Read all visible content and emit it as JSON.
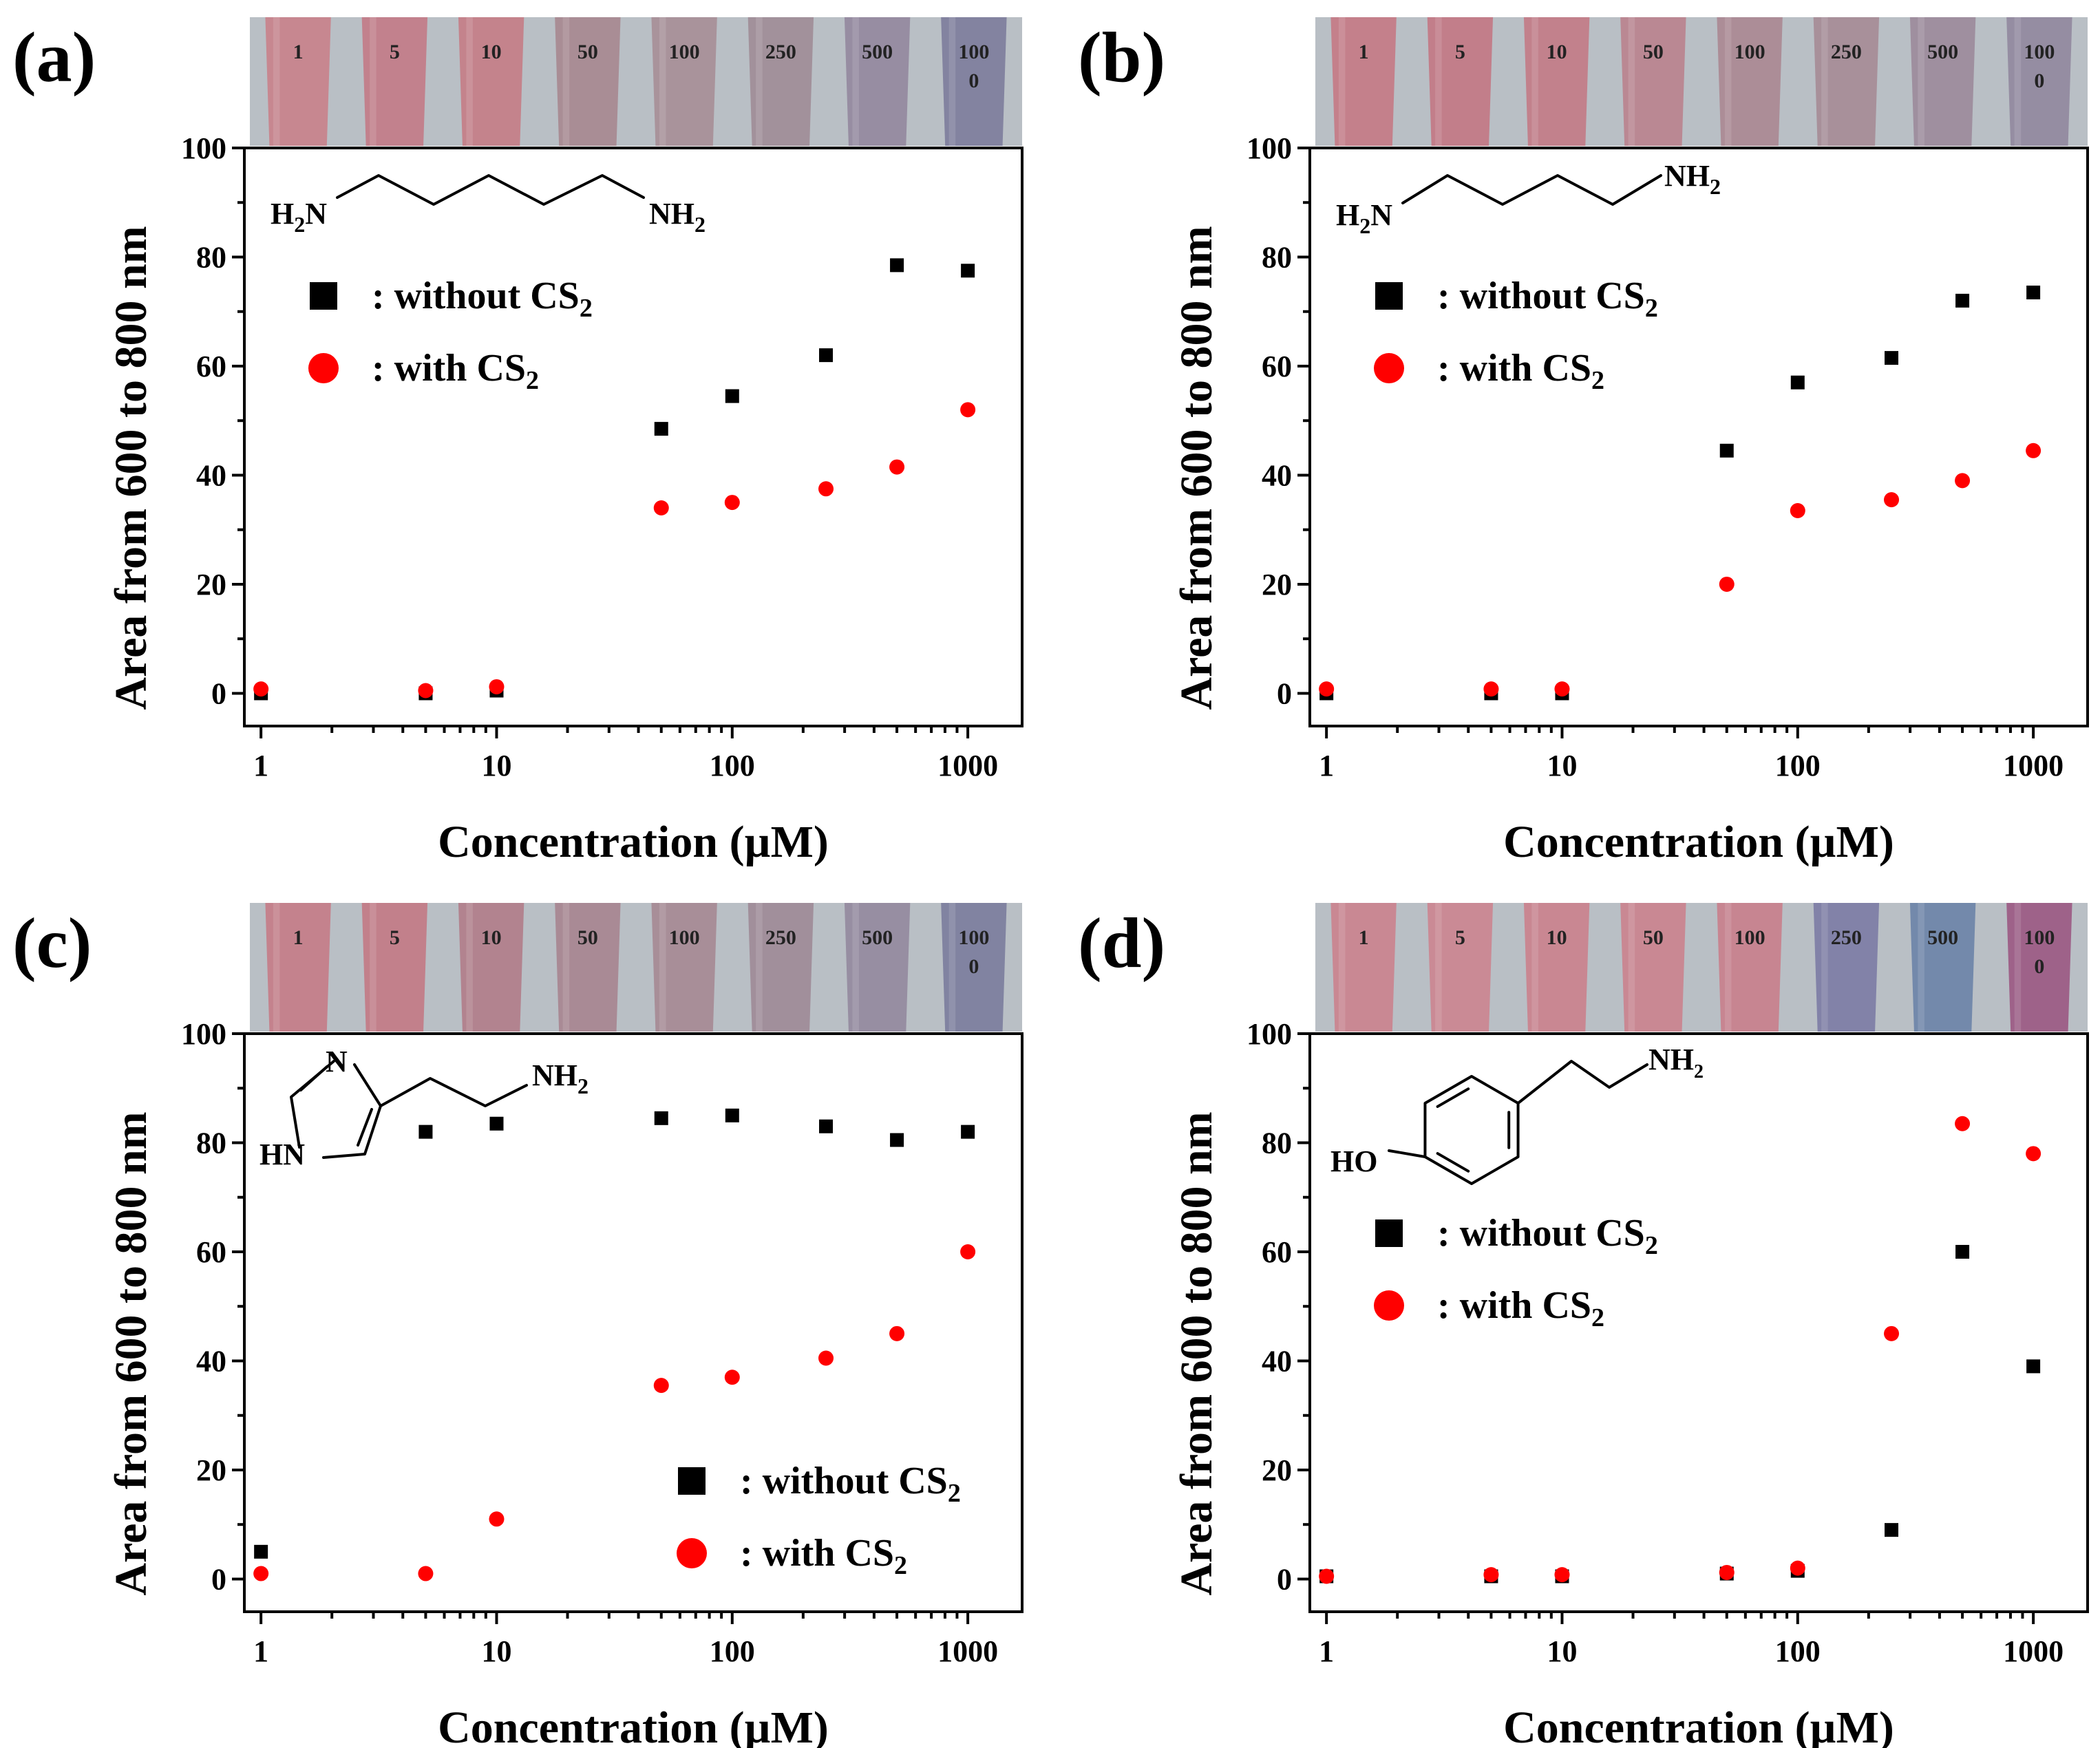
{
  "figure": {
    "panels": [
      "(a)",
      "(b)",
      "(c)",
      "(d)"
    ]
  },
  "colors": {
    "without": "#000000",
    "with": "#ff0000",
    "tube_bg": "#b9bfc5"
  },
  "chart_data": [
    {
      "id": "a",
      "type": "scatter",
      "panel_label": "(a)",
      "xlabel": "Concentration (µM)",
      "ylabel": "Area from 600 to 800 nm",
      "xscale": "log",
      "xlim": [
        0.85,
        1700
      ],
      "ylim": [
        -6,
        100
      ],
      "xticks": [
        1,
        10,
        100,
        1000
      ],
      "xtick_labels": [
        "1",
        "10",
        "100",
        "1000"
      ],
      "yticks": [
        0,
        20,
        40,
        60,
        80,
        100
      ],
      "ytick_labels": [
        "0",
        "20",
        "40",
        "60",
        "80",
        "100"
      ],
      "legend_position": "top-left",
      "series": [
        {
          "name": "without",
          "legend_label": ": without CS",
          "legend_sub": "2",
          "marker": "square",
          "x": [
            1,
            5,
            10,
            50,
            100,
            250,
            500,
            1000
          ],
          "values": [
            0,
            0,
            0.5,
            48.5,
            54.5,
            62,
            78.5,
            77.5
          ]
        },
        {
          "name": "with",
          "legend_label": ": with CS",
          "legend_sub": "2",
          "marker": "circle",
          "x": [
            1,
            5,
            10,
            50,
            100,
            250,
            500,
            1000
          ],
          "values": [
            0.8,
            0.5,
            1.2,
            34,
            35,
            37.5,
            41.5,
            52
          ]
        }
      ],
      "tubes": {
        "labels": [
          "1",
          "5",
          "10",
          "50",
          "100",
          "250",
          "500",
          "100"
        ],
        "labels_line2": [
          "",
          "",
          "",
          "",
          "",
          "",
          "",
          "0"
        ],
        "colors": [
          "#c7848d",
          "#c27d8a",
          "#c48089",
          "#a88a92",
          "#a89099",
          "#a08e99",
          "#958aa0",
          "#807f9e"
        ]
      },
      "molecule": {
        "left_label": "H",
        "left_sub": "2",
        "left_suffix": "N",
        "right_label": "NH",
        "right_sub": "2"
      }
    },
    {
      "id": "b",
      "type": "scatter",
      "panel_label": "(b)",
      "xlabel": "Concentration (µM)",
      "ylabel": "Area from 600 to 800 nm",
      "xscale": "log",
      "xlim": [
        0.85,
        1700
      ],
      "ylim": [
        -6,
        100
      ],
      "xticks": [
        1,
        10,
        100,
        1000
      ],
      "xtick_labels": [
        "1",
        "10",
        "100",
        "1000"
      ],
      "yticks": [
        0,
        20,
        40,
        60,
        80,
        100
      ],
      "ytick_labels": [
        "0",
        "20",
        "40",
        "60",
        "80",
        "100"
      ],
      "legend_position": "top-left",
      "series": [
        {
          "name": "without",
          "legend_label": ": without CS",
          "legend_sub": "2",
          "marker": "square",
          "x": [
            1,
            5,
            10,
            50,
            100,
            250,
            500,
            1000
          ],
          "values": [
            0,
            0,
            0,
            44.5,
            57,
            61.5,
            72,
            73.5
          ]
        },
        {
          "name": "with",
          "legend_label": ": with CS",
          "legend_sub": "2",
          "marker": "circle",
          "x": [
            1,
            5,
            10,
            50,
            100,
            250,
            500,
            1000
          ],
          "values": [
            0.8,
            0.8,
            0.8,
            20,
            33.5,
            35.5,
            39,
            44.5
          ]
        }
      ],
      "tubes": {
        "labels": [
          "1",
          "5",
          "10",
          "50",
          "100",
          "250",
          "500",
          "100"
        ],
        "labels_line2": [
          "",
          "",
          "",
          "",
          "",
          "",
          "",
          "0"
        ],
        "colors": [
          "#c47c88",
          "#c27a87",
          "#c27d89",
          "#b98590",
          "#ab8a95",
          "#a68d98",
          "#9d8c9d",
          "#928aa0"
        ]
      },
      "molecule": {
        "left_label": "H",
        "left_sub": "2",
        "left_suffix": "N",
        "right_label": "NH",
        "right_sub": "2"
      }
    },
    {
      "id": "c",
      "type": "scatter",
      "panel_label": "(c)",
      "xlabel": "Concentration (µM)",
      "ylabel": "Area from 600 to 800 nm",
      "xscale": "log",
      "xlim": [
        0.85,
        1700
      ],
      "ylim": [
        -6,
        100
      ],
      "xticks": [
        1,
        10,
        100,
        1000
      ],
      "xtick_labels": [
        "1",
        "10",
        "100",
        "1000"
      ],
      "yticks": [
        0,
        20,
        40,
        60,
        80,
        100
      ],
      "ytick_labels": [
        "0",
        "20",
        "40",
        "60",
        "80",
        "100"
      ],
      "legend_position": "bottom-right",
      "series": [
        {
          "name": "without",
          "legend_label": ": without CS",
          "legend_sub": "2",
          "marker": "square",
          "x": [
            1,
            5,
            10,
            50,
            100,
            250,
            500,
            1000
          ],
          "values": [
            5,
            82,
            83.5,
            84.5,
            85,
            83,
            80.5,
            82
          ]
        },
        {
          "name": "with",
          "legend_label": ": with CS",
          "legend_sub": "2",
          "marker": "circle",
          "x": [
            1,
            5,
            10,
            50,
            100,
            250,
            500,
            1000
          ],
          "values": [
            1,
            1,
            11,
            35.5,
            37,
            40.5,
            45,
            60
          ]
        }
      ],
      "tubes": {
        "labels": [
          "1",
          "5",
          "10",
          "50",
          "100",
          "250",
          "500",
          "100"
        ],
        "labels_line2": [
          "",
          "",
          "",
          "",
          "",
          "",
          "",
          "0"
        ],
        "colors": [
          "#c47e8a",
          "#c27c88",
          "#b17f8c",
          "#a88792",
          "#a68b96",
          "#9f8c99",
          "#958ba0",
          "#7d7f9f"
        ]
      },
      "molecule": {
        "n_label": "N",
        "hn_label": "HN",
        "right_label": "NH",
        "right_sub": "2"
      }
    },
    {
      "id": "d",
      "type": "scatter",
      "panel_label": "(d)",
      "xlabel": "Concentration (µM)",
      "ylabel": "Area from 600 to 800 nm",
      "xscale": "log",
      "xlim": [
        0.85,
        1700
      ],
      "ylim": [
        -6,
        100
      ],
      "xticks": [
        1,
        10,
        100,
        1000
      ],
      "xtick_labels": [
        "1",
        "10",
        "100",
        "1000"
      ],
      "yticks": [
        0,
        20,
        40,
        60,
        80,
        100
      ],
      "ytick_labels": [
        "0",
        "20",
        "40",
        "60",
        "80",
        "100"
      ],
      "legend_position": "center-left",
      "series": [
        {
          "name": "without",
          "legend_label": ": without CS",
          "legend_sub": "2",
          "marker": "square",
          "x": [
            1,
            5,
            10,
            50,
            100,
            250,
            500,
            1000
          ],
          "values": [
            0.5,
            0.5,
            0.5,
            1,
            1.5,
            9,
            60,
            39
          ]
        },
        {
          "name": "with",
          "legend_label": ": with CS",
          "legend_sub": "2",
          "marker": "circle",
          "x": [
            1,
            5,
            10,
            50,
            100,
            250,
            500,
            1000
          ],
          "values": [
            0.5,
            0.8,
            0.8,
            1.2,
            2,
            45,
            83.5,
            78
          ]
        }
      ],
      "tubes": {
        "labels": [
          "1",
          "5",
          "10",
          "50",
          "100",
          "250",
          "500",
          "100"
        ],
        "labels_line2": [
          "",
          "",
          "",
          "",
          "",
          "",
          "",
          "0"
        ],
        "colors": [
          "#c98590",
          "#ca8792",
          "#c9848f",
          "#c98590",
          "#c7828e",
          "#7e7ea6",
          "#6f86aa",
          "#9c5d86"
        ]
      },
      "molecule": {
        "ho_label": "HO",
        "right_label": "NH",
        "right_sub": "2"
      }
    }
  ]
}
